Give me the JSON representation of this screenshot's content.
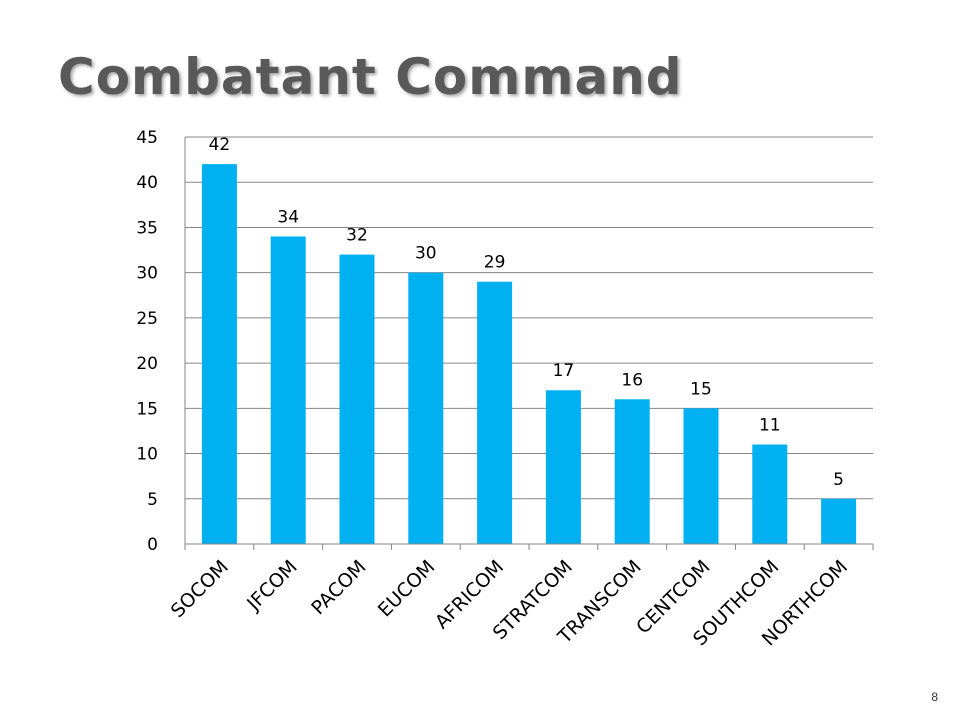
{
  "slide": {
    "title": "Combatant Command",
    "number": "8"
  },
  "colors": {
    "bar": "#00B0F0",
    "grid": "#868686",
    "title": "#595959"
  },
  "chart_data": {
    "type": "bar",
    "title": "",
    "xlabel": "",
    "ylabel": "",
    "categories": [
      "SOCOM",
      "JFCOM",
      "PACOM",
      "EUCOM",
      "AFRICOM",
      "STRATCOM",
      "TRANSCOM",
      "CENTCOM",
      "SOUTHCOM",
      "NORTHCOM"
    ],
    "values": [
      42,
      34,
      32,
      30,
      29,
      17,
      16,
      15,
      11,
      5
    ],
    "ylim": [
      0,
      45
    ],
    "yticks": [
      0,
      5,
      10,
      15,
      20,
      25,
      30,
      35,
      40,
      45
    ],
    "grid": true,
    "data_labels": true,
    "legend": false
  }
}
